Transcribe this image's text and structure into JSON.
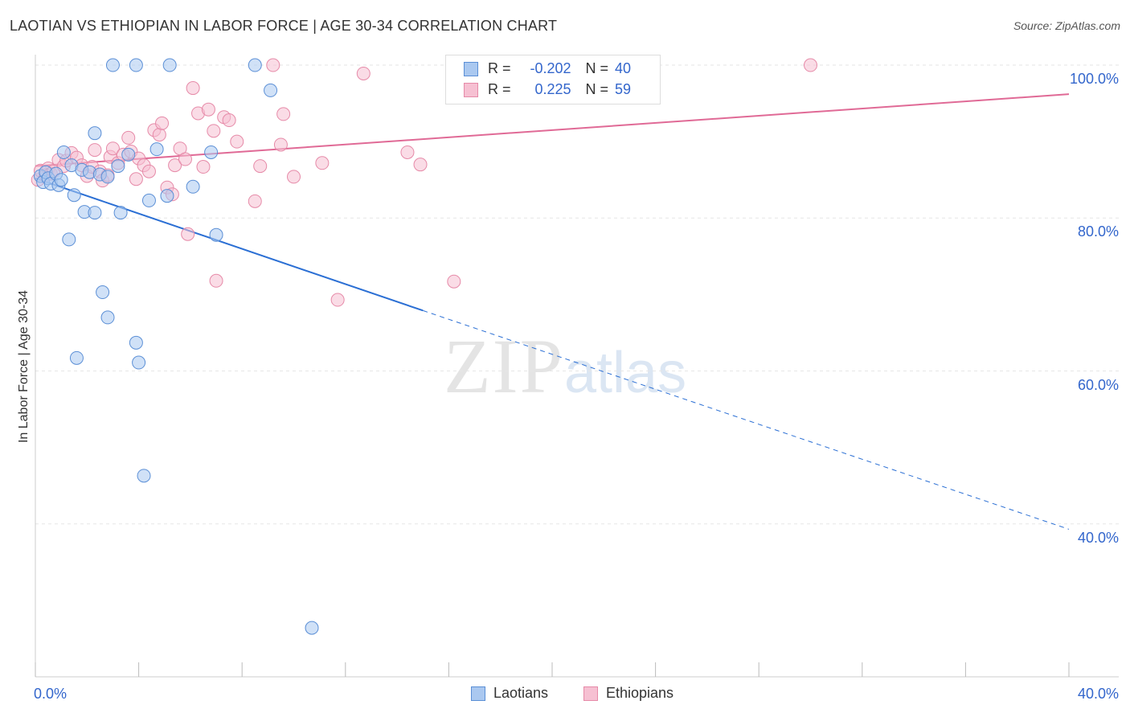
{
  "title": "LAOTIAN VS ETHIOPIAN IN LABOR FORCE | AGE 30-34 CORRELATION CHART",
  "source": "Source: ZipAtlas.com",
  "watermark": {
    "zip": "ZIP",
    "atlas": "atlas"
  },
  "legend": {
    "laotians": {
      "r_label": "R =",
      "r_value": "-0.202",
      "n_label": "N =",
      "n_value": "40"
    },
    "ethiopians": {
      "r_label": "R =",
      "r_value": "0.225",
      "n_label": "N =",
      "n_value": "59"
    }
  },
  "colors": {
    "laotian_fill": "#aac8f0",
    "laotian_stroke": "#5b8fd6",
    "laotian_line": "#2b6fd4",
    "ethiopian_fill": "#f6c0d2",
    "ethiopian_stroke": "#e68aa8",
    "ethiopian_line": "#e06a96",
    "tick_text": "#3366cc",
    "grid": "#e6e6e6"
  },
  "chart_data": {
    "type": "scatter",
    "title": "LAOTIAN VS ETHIOPIAN IN LABOR FORCE | AGE 30-34 CORRELATION CHART",
    "xlabel": "",
    "ylabel": "In Labor Force | Age 30-34",
    "xlim": [
      0,
      40
    ],
    "ylim": [
      20,
      102
    ],
    "x_tick_labels": [
      {
        "value": 0,
        "label": "0.0%"
      },
      {
        "value": 40,
        "label": "40.0%"
      }
    ],
    "y_tick_labels": [
      {
        "value": 100,
        "label": "100.0%"
      },
      {
        "value": 80,
        "label": "80.0%"
      },
      {
        "value": 60,
        "label": "60.0%"
      },
      {
        "value": 40,
        "label": "40.0%"
      }
    ],
    "grid": true,
    "legend_position": "top-center",
    "series": [
      {
        "name": "Laotians",
        "r": -0.202,
        "n": 40,
        "trend": {
          "x0": 0,
          "y0": 85.2,
          "x1": 15.0,
          "y1": 67.9,
          "dash_to_x": 40.0,
          "dash_to_y": 39.3
        },
        "points": [
          {
            "x": 0.2,
            "y": 85.5
          },
          {
            "x": 0.3,
            "y": 84.7
          },
          {
            "x": 0.4,
            "y": 86.0
          },
          {
            "x": 0.5,
            "y": 85.2
          },
          {
            "x": 0.6,
            "y": 84.5
          },
          {
            "x": 0.8,
            "y": 85.8
          },
          {
            "x": 0.9,
            "y": 84.3
          },
          {
            "x": 1.0,
            "y": 85.0
          },
          {
            "x": 1.1,
            "y": 88.6
          },
          {
            "x": 1.3,
            "y": 77.2
          },
          {
            "x": 1.4,
            "y": 86.9
          },
          {
            "x": 1.5,
            "y": 83.0
          },
          {
            "x": 1.6,
            "y": 61.7
          },
          {
            "x": 1.8,
            "y": 86.3
          },
          {
            "x": 1.9,
            "y": 80.8
          },
          {
            "x": 2.1,
            "y": 86.0
          },
          {
            "x": 2.3,
            "y": 80.7
          },
          {
            "x": 2.3,
            "y": 91.1
          },
          {
            "x": 2.5,
            "y": 85.7
          },
          {
            "x": 2.6,
            "y": 70.3
          },
          {
            "x": 2.8,
            "y": 85.4
          },
          {
            "x": 2.8,
            "y": 67.0
          },
          {
            "x": 3.0,
            "y": 100.0
          },
          {
            "x": 3.2,
            "y": 86.8
          },
          {
            "x": 3.3,
            "y": 80.7
          },
          {
            "x": 3.6,
            "y": 88.3
          },
          {
            "x": 3.9,
            "y": 100.0
          },
          {
            "x": 3.9,
            "y": 63.7
          },
          {
            "x": 4.0,
            "y": 61.1
          },
          {
            "x": 4.2,
            "y": 46.3
          },
          {
            "x": 4.4,
            "y": 82.3
          },
          {
            "x": 4.7,
            "y": 89.0
          },
          {
            "x": 5.1,
            "y": 82.9
          },
          {
            "x": 5.2,
            "y": 100.0
          },
          {
            "x": 6.1,
            "y": 84.1
          },
          {
            "x": 6.8,
            "y": 88.6
          },
          {
            "x": 7.0,
            "y": 77.8
          },
          {
            "x": 8.5,
            "y": 100.0
          },
          {
            "x": 9.1,
            "y": 96.7
          },
          {
            "x": 10.7,
            "y": 26.4
          }
        ]
      },
      {
        "name": "Ethiopians",
        "r": 0.225,
        "n": 59,
        "trend": {
          "x0": 0,
          "y0": 86.8,
          "x1": 40.0,
          "y1": 96.2
        },
        "points": [
          {
            "x": 0.1,
            "y": 85.0
          },
          {
            "x": 0.2,
            "y": 86.2
          },
          {
            "x": 0.4,
            "y": 85.6
          },
          {
            "x": 0.5,
            "y": 86.5
          },
          {
            "x": 0.6,
            "y": 85.8
          },
          {
            "x": 0.7,
            "y": 86.1
          },
          {
            "x": 0.9,
            "y": 87.6
          },
          {
            "x": 1.1,
            "y": 86.8
          },
          {
            "x": 1.2,
            "y": 87.5
          },
          {
            "x": 1.4,
            "y": 88.5
          },
          {
            "x": 1.6,
            "y": 87.9
          },
          {
            "x": 1.8,
            "y": 86.9
          },
          {
            "x": 2.0,
            "y": 85.5
          },
          {
            "x": 2.2,
            "y": 86.7
          },
          {
            "x": 2.3,
            "y": 88.9
          },
          {
            "x": 2.5,
            "y": 86.1
          },
          {
            "x": 2.6,
            "y": 84.9
          },
          {
            "x": 2.8,
            "y": 85.6
          },
          {
            "x": 2.9,
            "y": 88.0
          },
          {
            "x": 3.0,
            "y": 89.1
          },
          {
            "x": 3.2,
            "y": 87.2
          },
          {
            "x": 3.4,
            "y": 88.3
          },
          {
            "x": 3.6,
            "y": 90.5
          },
          {
            "x": 3.7,
            "y": 88.7
          },
          {
            "x": 3.9,
            "y": 85.1
          },
          {
            "x": 4.0,
            "y": 87.8
          },
          {
            "x": 4.2,
            "y": 86.9
          },
          {
            "x": 4.4,
            "y": 86.1
          },
          {
            "x": 4.6,
            "y": 91.5
          },
          {
            "x": 4.8,
            "y": 90.9
          },
          {
            "x": 4.9,
            "y": 92.4
          },
          {
            "x": 5.1,
            "y": 84.0
          },
          {
            "x": 5.3,
            "y": 83.1
          },
          {
            "x": 5.4,
            "y": 86.9
          },
          {
            "x": 5.6,
            "y": 89.1
          },
          {
            "x": 5.8,
            "y": 87.7
          },
          {
            "x": 5.9,
            "y": 77.9
          },
          {
            "x": 6.1,
            "y": 97.0
          },
          {
            "x": 6.3,
            "y": 93.7
          },
          {
            "x": 6.5,
            "y": 86.7
          },
          {
            "x": 6.7,
            "y": 94.2
          },
          {
            "x": 6.9,
            "y": 91.4
          },
          {
            "x": 7.0,
            "y": 71.8
          },
          {
            "x": 7.3,
            "y": 93.2
          },
          {
            "x": 7.5,
            "y": 92.8
          },
          {
            "x": 7.8,
            "y": 90.0
          },
          {
            "x": 8.5,
            "y": 82.2
          },
          {
            "x": 8.7,
            "y": 86.8
          },
          {
            "x": 9.2,
            "y": 100.0
          },
          {
            "x": 9.5,
            "y": 89.6
          },
          {
            "x": 9.6,
            "y": 93.6
          },
          {
            "x": 10.0,
            "y": 85.4
          },
          {
            "x": 11.1,
            "y": 87.2
          },
          {
            "x": 11.7,
            "y": 69.3
          },
          {
            "x": 12.7,
            "y": 98.9
          },
          {
            "x": 14.4,
            "y": 88.6
          },
          {
            "x": 14.9,
            "y": 87.0
          },
          {
            "x": 16.2,
            "y": 71.7
          },
          {
            "x": 30.0,
            "y": 100.0
          }
        ]
      }
    ]
  },
  "bottom_legend": {
    "laotians": "Laotians",
    "ethiopians": "Ethiopians"
  }
}
